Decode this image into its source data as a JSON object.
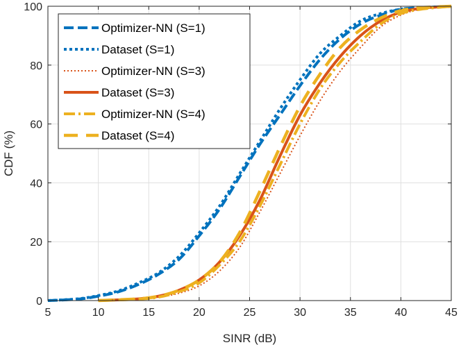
{
  "chart_data": {
    "type": "line",
    "title": "",
    "xlabel": "SINR (dB)",
    "ylabel": "CDF (%)",
    "xlim": [
      5,
      45
    ],
    "ylim": [
      0,
      100
    ],
    "xticks": [
      5,
      10,
      15,
      20,
      25,
      30,
      35,
      40,
      45
    ],
    "yticks": [
      0,
      20,
      40,
      60,
      80,
      100
    ],
    "grid": true,
    "legend_position": "top-left",
    "series": [
      {
        "name": "Optimizer-NN (S=1)",
        "color": "#0072BD",
        "style": "dashed",
        "x": [
          5,
          8,
          10,
          12,
          14,
          16,
          18,
          20,
          22,
          24,
          26,
          28,
          30,
          32,
          34,
          36,
          38,
          40,
          42,
          45
        ],
        "y": [
          0,
          0.5,
          1.5,
          3,
          5.5,
          9,
          14,
          22,
          31,
          42,
          53,
          63,
          73,
          82,
          89,
          94,
          97,
          99,
          99.5,
          100
        ]
      },
      {
        "name": "Dataset (S=1)",
        "color": "#0072BD",
        "style": "dotted",
        "x": [
          5,
          8,
          10,
          12,
          14,
          16,
          18,
          20,
          22,
          24,
          26,
          28,
          30,
          32,
          34,
          36,
          38,
          40,
          42,
          45
        ],
        "y": [
          0,
          0.6,
          1.7,
          3.3,
          6,
          9.5,
          15,
          23,
          32,
          43,
          54,
          65,
          75,
          84,
          90,
          95,
          97.5,
          99,
          99.5,
          100
        ]
      },
      {
        "name": "Optimizer-NN (S=3)",
        "color": "#D95319",
        "style": "dotted",
        "x": [
          10,
          14,
          16,
          18,
          20,
          22,
          24,
          26,
          28,
          30,
          32,
          34,
          36,
          38,
          40,
          42,
          45
        ],
        "y": [
          0,
          0.5,
          1.2,
          2.5,
          5,
          10,
          18,
          30,
          43,
          56,
          68,
          78,
          86,
          93,
          97,
          99,
          100
        ]
      },
      {
        "name": "Dataset (S=3)",
        "color": "#D95319",
        "style": "solid",
        "x": [
          10,
          14,
          16,
          18,
          20,
          22,
          24,
          26,
          28,
          30,
          32,
          34,
          36,
          38,
          40,
          42,
          45
        ],
        "y": [
          0,
          0.6,
          1.5,
          3.5,
          7,
          13,
          22,
          34,
          49,
          63,
          74,
          83,
          90,
          95,
          98,
          99.3,
          100
        ]
      },
      {
        "name": "Optimizer-NN (S=4)",
        "color": "#EDB120",
        "style": "dashdot",
        "x": [
          10,
          14,
          16,
          18,
          20,
          22,
          24,
          26,
          28,
          30,
          32,
          34,
          36,
          38,
          40,
          42,
          45
        ],
        "y": [
          0,
          0.5,
          1.2,
          3,
          6,
          12,
          20,
          32,
          46,
          60,
          72,
          81,
          88,
          94,
          97.5,
          99,
          100
        ]
      },
      {
        "name": "Dataset (S=4)",
        "color": "#EDB120",
        "style": "longdash",
        "x": [
          10,
          14,
          16,
          18,
          20,
          22,
          24,
          26,
          28,
          30,
          32,
          34,
          36,
          38,
          40,
          42,
          45
        ],
        "y": [
          0,
          0.6,
          1.5,
          3.5,
          7,
          13,
          23,
          37,
          52,
          66,
          77,
          86,
          92,
          96,
          98.5,
          99.5,
          100
        ]
      }
    ]
  }
}
